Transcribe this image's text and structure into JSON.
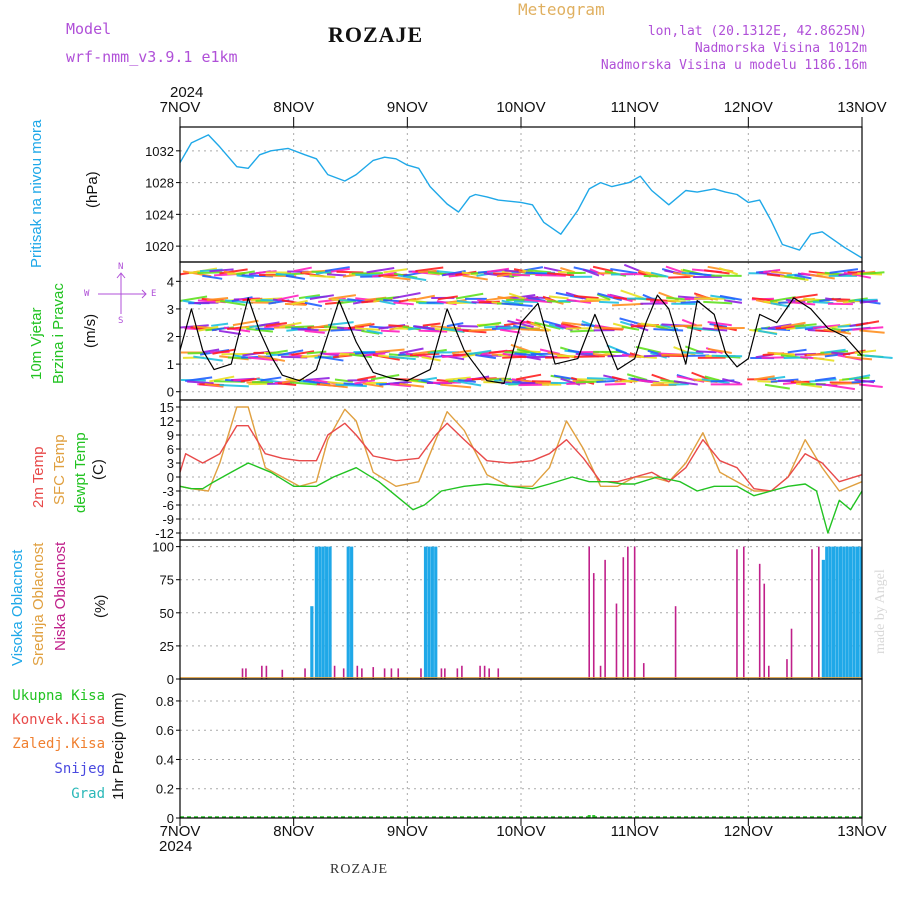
{
  "header": {
    "model_label": "Model",
    "model_name": "wrf-nmm_v3.9.1  e1km",
    "title": "ROZAJE",
    "meteogram": "Meteogram",
    "lonlat": "lon,lat (20.1312E, 42.8625N)",
    "elev": "Nadmorska Visina 1012m",
    "elev_model": "Nadmorska Visina u modelu 1186.16m",
    "year_top": "2024",
    "year_bottom": "2024",
    "footer": "ROZAJE",
    "credit": "made by Angel"
  },
  "colors": {
    "pressure": "#1fa8e8",
    "temp2m": "#e84a4a",
    "sfctemp": "#e0a040",
    "dewpt": "#22c322",
    "high_cloud": "#1fa8e8",
    "mid_cloud": "#e0a040",
    "low_cloud": "#c0208a",
    "precip_total": "#22c322"
  },
  "panel_labels": {
    "pressure": [
      "Pritisak na nivou mora",
      "(hPa)"
    ],
    "wind": [
      "10m Vjetar",
      "Brzina i Pravac",
      "(m/s)"
    ],
    "wind_compass": [
      "N",
      "W",
      "E",
      "S"
    ],
    "temp": [
      "2m Temp",
      "SFC Temp",
      "dewpt Temp",
      "(C)"
    ],
    "cloud": [
      "Visoka Oblacnost",
      "Srednja Oblacnost",
      "Niska Oblacnost",
      "(%)"
    ],
    "precip_legend": [
      "Ukupna Kisa",
      "Konvek.Kisa",
      "Zaledj.Kisa",
      "Snijeg",
      "Grad"
    ],
    "precip": "1hr Precip (mm)"
  },
  "chart_data": [
    {
      "type": "line",
      "panel": "pressure",
      "ylabel": "(hPa)",
      "x_ticks": [
        "7NOV",
        "8NOV",
        "9NOV",
        "10NOV",
        "11NOV",
        "12NOV",
        "13NOV"
      ],
      "y_ticks": [
        1020,
        1024,
        1028,
        1032
      ],
      "ylim": [
        1018,
        1035
      ],
      "series": [
        {
          "name": "Pritisak na nivou mora",
          "x": [
            0,
            0.1,
            0.25,
            0.35,
            0.5,
            0.6,
            0.7,
            0.8,
            0.95,
            1.1,
            1.2,
            1.3,
            1.45,
            1.55,
            1.7,
            1.8,
            1.9,
            2.0,
            2.1,
            2.2,
            2.35,
            2.45,
            2.55,
            2.6,
            2.7,
            2.8,
            3.0,
            3.1,
            3.2,
            3.35,
            3.5,
            3.6,
            3.7,
            3.8,
            3.95,
            4.05,
            4.15,
            4.3,
            4.45,
            4.55,
            4.7,
            4.8,
            4.9,
            5.0,
            5.1,
            5.2,
            5.3,
            5.45,
            5.55,
            5.65,
            5.75,
            5.85,
            6.0
          ],
          "values": [
            1030.5,
            1033,
            1034,
            1032.5,
            1030,
            1029.8,
            1031.5,
            1032,
            1032.3,
            1031.5,
            1031,
            1029,
            1028.2,
            1029,
            1030.8,
            1031.2,
            1031,
            1030.2,
            1029.8,
            1027.5,
            1025.3,
            1024.3,
            1026.2,
            1026.5,
            1026.2,
            1025.8,
            1025.5,
            1025.2,
            1023,
            1021.5,
            1024.5,
            1027.2,
            1028,
            1027.5,
            1028,
            1028.8,
            1027,
            1025.2,
            1027,
            1026.8,
            1027.2,
            1026.8,
            1026.5,
            1025.5,
            1025.8,
            1023.2,
            1020.2,
            1019.5,
            1021.5,
            1021.8,
            1020.8,
            1019.8,
            1018.5
          ]
        }
      ]
    },
    {
      "type": "line",
      "panel": "wind",
      "ylabel": "(m/s)",
      "x_ticks": [
        "7NOV",
        "8NOV",
        "9NOV",
        "10NOV",
        "11NOV",
        "12NOV",
        "13NOV"
      ],
      "y_ticks": [
        0,
        1,
        2,
        3,
        4
      ],
      "ylim": [
        -0.3,
        4.7
      ],
      "series": [
        {
          "name": "10m Vjetar",
          "x": [
            0,
            0.1,
            0.2,
            0.3,
            0.45,
            0.6,
            0.7,
            0.8,
            0.9,
            1.05,
            1.2,
            1.4,
            1.55,
            1.7,
            1.85,
            2.0,
            2.2,
            2.35,
            2.5,
            2.7,
            2.85,
            3.0,
            3.15,
            3.3,
            3.5,
            3.65,
            3.75,
            3.85,
            4.0,
            4.1,
            4.2,
            4.3,
            4.45,
            4.55,
            4.7,
            4.8,
            4.9,
            5.0,
            5.1,
            5.25,
            5.4,
            5.55,
            5.7,
            5.85,
            6.0
          ],
          "values": [
            1.5,
            3.0,
            1.5,
            0.8,
            1.0,
            3.4,
            2.2,
            1.3,
            0.6,
            0.4,
            0.8,
            3.3,
            1.8,
            0.7,
            0.5,
            0.4,
            0.8,
            3.0,
            1.5,
            0.4,
            0.3,
            2.5,
            3.2,
            1.0,
            1.2,
            2.8,
            1.8,
            0.8,
            1.2,
            2.5,
            3.5,
            3.0,
            1.0,
            3.3,
            2.8,
            1.4,
            0.9,
            1.2,
            2.8,
            2.5,
            3.4,
            3.0,
            2.3,
            2.0,
            1.3
          ]
        }
      ]
    },
    {
      "type": "line",
      "panel": "temperature",
      "ylabel": "(C)",
      "x_ticks": [
        "7NOV",
        "8NOV",
        "9NOV",
        "10NOV",
        "11NOV",
        "12NOV",
        "13NOV"
      ],
      "y_ticks": [
        -12,
        -9,
        -6,
        -3,
        0,
        3,
        6,
        9,
        12,
        15
      ],
      "ylim": [
        -13.5,
        16.5
      ],
      "series": [
        {
          "name": "2m Temp",
          "x": [
            0,
            0.05,
            0.2,
            0.35,
            0.5,
            0.6,
            0.75,
            0.9,
            1.05,
            1.2,
            1.3,
            1.45,
            1.55,
            1.7,
            1.9,
            2.1,
            2.25,
            2.35,
            2.5,
            2.7,
            2.9,
            3.1,
            3.25,
            3.4,
            3.55,
            3.7,
            3.85,
            4.0,
            4.15,
            4.3,
            4.45,
            4.6,
            4.75,
            4.9,
            5.05,
            5.2,
            5.35,
            5.5,
            5.65,
            5.8,
            6.0
          ],
          "values": [
            1,
            5,
            3,
            5,
            11,
            11,
            5,
            4,
            3.5,
            3.5,
            9,
            11.5,
            9,
            4.5,
            3.5,
            4,
            9,
            11.5,
            8,
            3.5,
            3,
            3.5,
            5,
            8,
            4,
            -1,
            -1,
            0,
            1,
            -1,
            2,
            8,
            3.5,
            2,
            -2.5,
            -3,
            0,
            5,
            3,
            -1,
            0.5
          ]
        },
        {
          "name": "SFC Temp",
          "x": [
            0,
            0.1,
            0.25,
            0.35,
            0.5,
            0.6,
            0.75,
            0.9,
            1.05,
            1.2,
            1.3,
            1.45,
            1.55,
            1.7,
            1.9,
            2.1,
            2.25,
            2.35,
            2.5,
            2.7,
            2.9,
            3.1,
            3.25,
            3.4,
            3.55,
            3.7,
            3.85,
            4.0,
            4.15,
            4.3,
            4.45,
            4.6,
            4.75,
            4.9,
            5.05,
            5.2,
            5.35,
            5.5,
            5.65,
            5.8,
            6.0
          ],
          "values": [
            -2,
            -2.5,
            -3,
            3,
            15,
            15,
            2,
            0,
            -2,
            -1,
            8,
            14.5,
            12,
            1,
            -2,
            -1,
            8,
            14,
            10,
            0.5,
            -2,
            -2,
            2,
            12,
            6,
            -2,
            -2,
            0,
            0,
            -1,
            3,
            9.5,
            1,
            -1,
            -3,
            -3,
            0,
            8,
            2,
            -3,
            -1
          ]
        },
        {
          "name": "dewpt Temp",
          "x": [
            0,
            0.1,
            0.2,
            0.3,
            0.45,
            0.6,
            0.8,
            1.0,
            1.2,
            1.35,
            1.55,
            1.75,
            1.95,
            2.05,
            2.15,
            2.3,
            2.5,
            2.7,
            2.9,
            3.1,
            3.25,
            3.45,
            3.6,
            3.75,
            3.9,
            4.0,
            4.2,
            4.4,
            4.55,
            4.7,
            4.9,
            5.05,
            5.2,
            5.35,
            5.5,
            5.6,
            5.7,
            5.8,
            5.9,
            6.0
          ],
          "values": [
            -2,
            -2.5,
            -2.5,
            -1,
            1,
            3,
            1,
            -2,
            -2,
            0,
            2,
            -1,
            -5,
            -7,
            -6,
            -3,
            -2,
            -1.5,
            -2,
            -2.5,
            -1.5,
            0,
            -1,
            -1,
            -1.5,
            -1.5,
            0,
            -1,
            -3,
            -2,
            -2,
            -4,
            -3,
            -2,
            -1.5,
            -3,
            -12,
            -5,
            -7,
            -3
          ]
        }
      ]
    },
    {
      "type": "bar",
      "panel": "cloud",
      "ylabel": "(%)",
      "x_ticks": [
        "7NOV",
        "8NOV",
        "9NOV",
        "10NOV",
        "11NOV",
        "12NOV",
        "13NOV"
      ],
      "y_ticks": [
        0,
        25,
        50,
        75,
        100
      ],
      "ylim": [
        0,
        105
      ],
      "series": [
        {
          "name": "Visoka Oblacnost",
          "x": [
            1.16,
            1.2,
            1.23,
            1.26,
            1.29,
            1.32,
            1.48,
            1.51,
            2.16,
            2.19,
            2.22,
            2.25,
            5.66,
            5.69,
            5.72,
            5.75,
            5.78,
            5.81,
            5.84,
            5.87,
            5.9,
            5.93,
            5.96,
            5.99
          ],
          "values": [
            55,
            100,
            100,
            100,
            100,
            100,
            100,
            100,
            100,
            100,
            100,
            100,
            90,
            100,
            100,
            100,
            100,
            100,
            100,
            100,
            100,
            100,
            100,
            100
          ]
        },
        {
          "name": "Niska Oblacnost",
          "x": [
            0.55,
            0.58,
            0.72,
            0.76,
            0.9,
            1.1,
            1.36,
            1.44,
            1.56,
            1.6,
            1.7,
            1.8,
            1.86,
            1.92,
            2.12,
            2.3,
            2.33,
            2.44,
            2.48,
            2.64,
            2.68,
            2.72,
            2.8,
            3.6,
            3.64,
            3.7,
            3.74,
            3.84,
            3.9,
            3.94,
            4.0,
            4.08,
            4.36,
            4.9,
            4.96,
            5.1,
            5.14,
            5.18,
            5.34,
            5.38,
            5.56,
            5.62
          ],
          "values": [
            8,
            8,
            10,
            10,
            7,
            8,
            10,
            8,
            10,
            8,
            9,
            8,
            8,
            8,
            8,
            8,
            8,
            8,
            10,
            10,
            10,
            8,
            8,
            100,
            80,
            10,
            90,
            57,
            92,
            100,
            100,
            12,
            55,
            98,
            100,
            87,
            72,
            10,
            15,
            38,
            98,
            100
          ]
        }
      ]
    },
    {
      "type": "bar",
      "panel": "precip",
      "ylabel": "1hr Precip (mm)",
      "x_ticks": [
        "7NOV",
        "8NOV",
        "9NOV",
        "10NOV",
        "11NOV",
        "12NOV",
        "13NOV"
      ],
      "y_ticks": [
        0,
        0.2,
        0.4,
        0.6,
        0.8
      ],
      "ylim": [
        0,
        0.95
      ],
      "series": [
        {
          "name": "Ukupna Kisa",
          "x": [
            3.6,
            3.64
          ],
          "values": [
            0.02,
            0.02
          ]
        }
      ]
    }
  ]
}
